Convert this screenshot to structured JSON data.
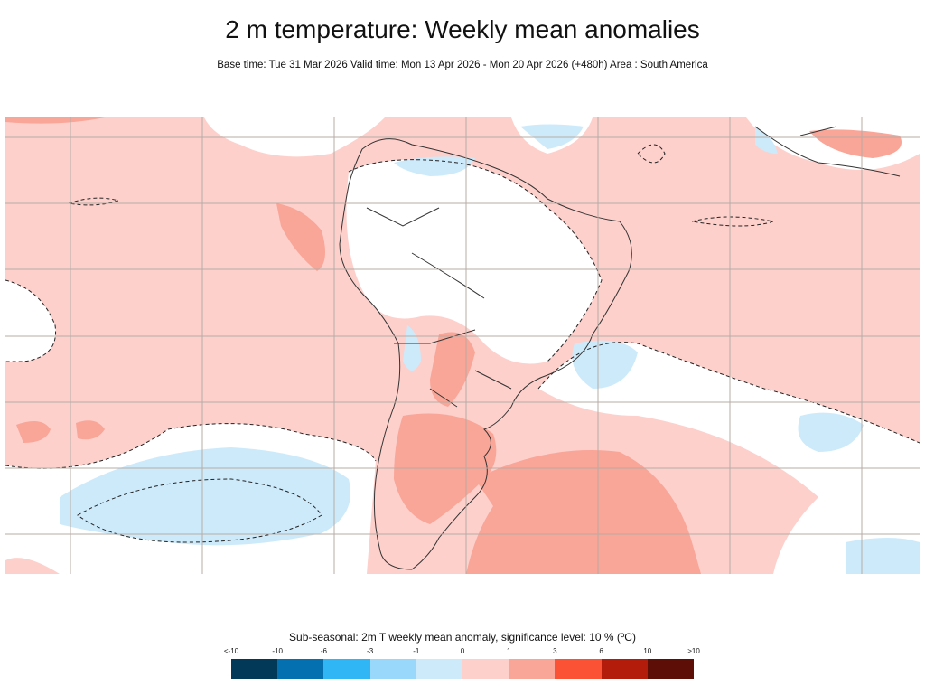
{
  "title": "2 m temperature: Weekly mean anomalies",
  "subtitle": "Base time: Tue 31 Mar 2026 Valid time: Mon 13 Apr 2026 - Mon 20 Apr 2026 (+480h) Area : South America",
  "map": {
    "area": "South America",
    "projection": "latitude-longitude",
    "significance_contour": "dashed black",
    "colors": {
      "pink": "#fdd0cb",
      "salmon": "#f9a597",
      "light_blue": "#cdeafb",
      "blue": "#9ad8fb",
      "land_border": "#333333",
      "grid": "#b8aca6"
    }
  },
  "legend": {
    "title": "Sub-seasonal: 2m T weekly mean anomaly, significance level: 10 % (ºC)",
    "ticks": [
      "<-10",
      "-10",
      "-6",
      "-3",
      "-1",
      "0",
      "1",
      "3",
      "6",
      "10",
      ">10"
    ],
    "colors": [
      "#023858",
      "#0570b0",
      "#30b5f5",
      "#9ad8fb",
      "#cdeafb",
      "#fdd0cb",
      "#f9a597",
      "#fb5235",
      "#b31b0a",
      "#5c0e07"
    ]
  }
}
